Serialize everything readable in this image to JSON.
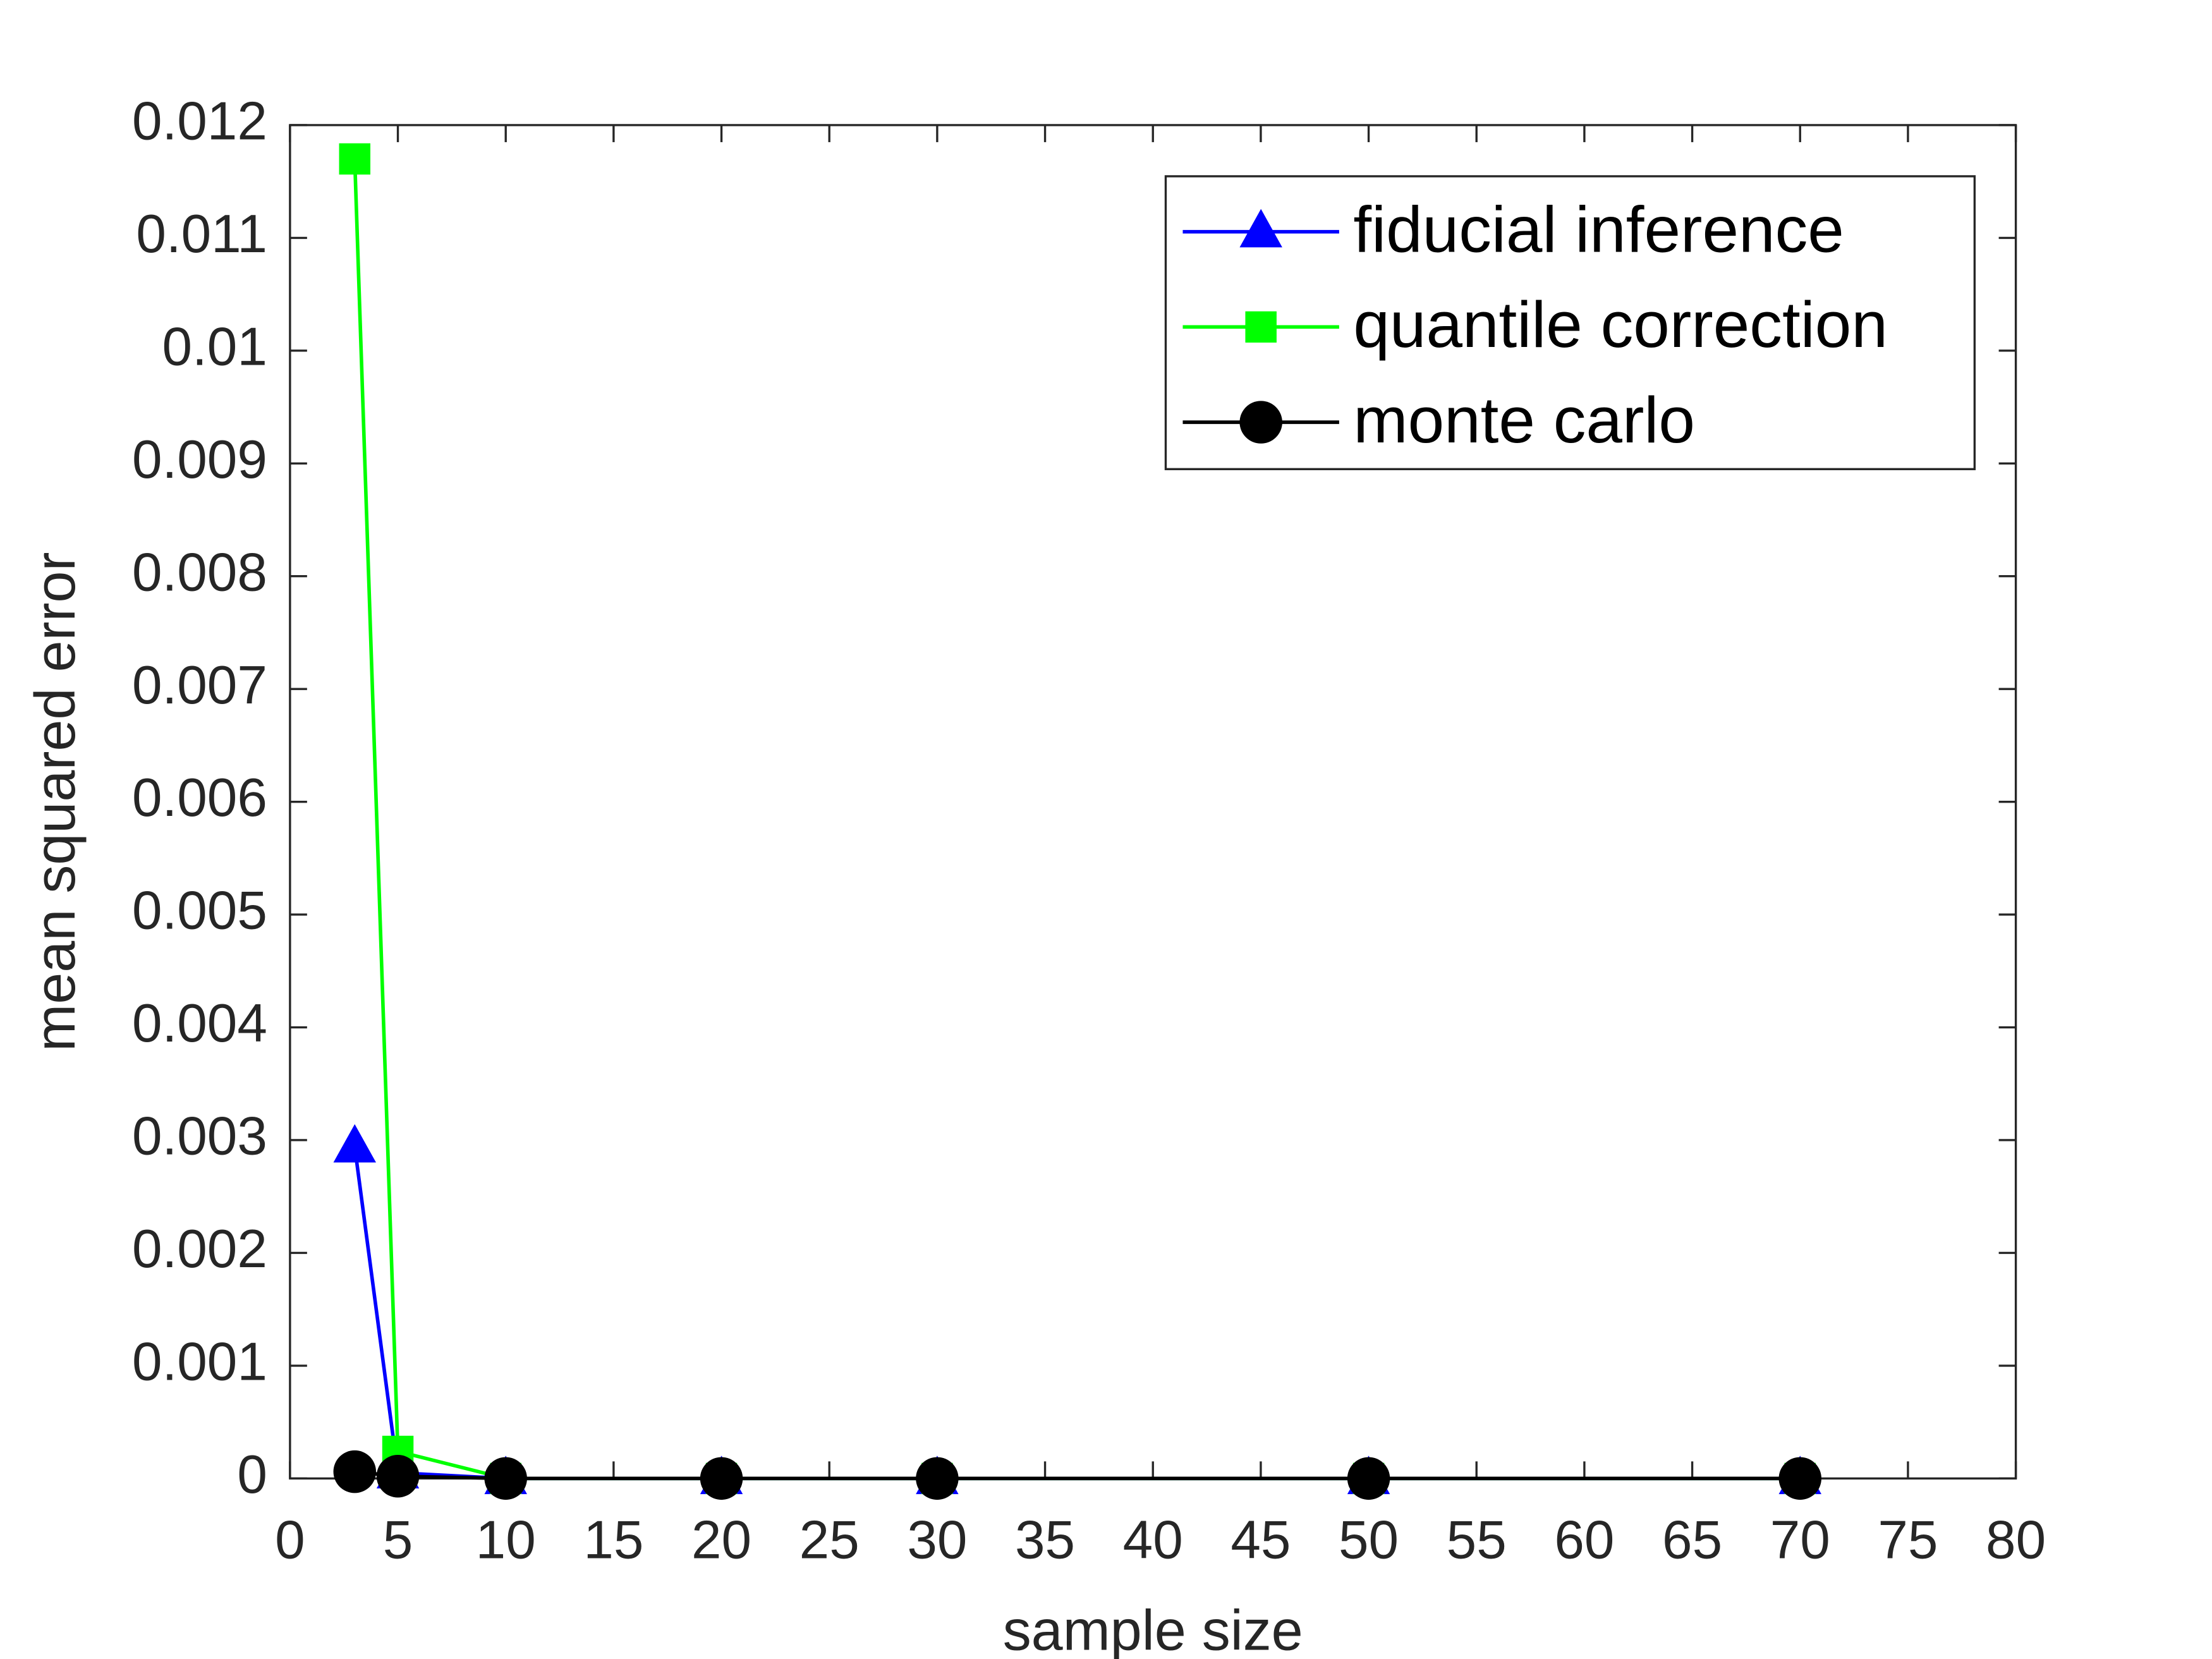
{
  "chart_data": {
    "type": "line",
    "xlabel": "sample size",
    "ylabel": "mean squared error",
    "x": [
      3,
      5,
      10,
      20,
      30,
      50,
      70
    ],
    "series": [
      {
        "name": "fiducial inference",
        "color": "#0000ff",
        "marker": "triangle",
        "values": [
          0.00294,
          5e-05,
          0,
          0,
          0,
          0,
          0
        ]
      },
      {
        "name": "quantile correction",
        "color": "#00ff00",
        "marker": "square",
        "values": [
          0.0117,
          0.00024,
          0,
          0,
          0,
          0,
          0
        ]
      },
      {
        "name": "monte carlo",
        "color": "#000000",
        "marker": "circle",
        "values": [
          6e-05,
          2e-05,
          0,
          0,
          0,
          0,
          0
        ]
      }
    ],
    "xlim": [
      0,
      80
    ],
    "xticks": [
      0,
      5,
      10,
      15,
      20,
      25,
      30,
      35,
      40,
      45,
      50,
      55,
      60,
      65,
      70,
      75,
      80
    ],
    "ylim": [
      0,
      0.012
    ],
    "yticks": [
      0,
      0.001,
      0.002,
      0.003,
      0.004,
      0.005,
      0.006,
      0.007,
      0.008,
      0.009,
      0.01,
      0.011,
      0.012
    ],
    "grid": false,
    "legend": "upper right"
  }
}
